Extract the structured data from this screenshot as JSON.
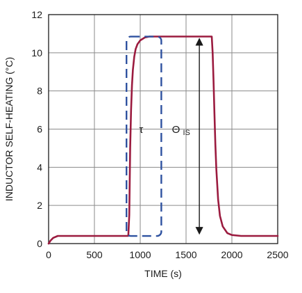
{
  "chart_data": {
    "type": "line",
    "title": "",
    "xlabel": "TIME (s)",
    "ylabel": "INDUCTOR SELF-HEATING (°C)",
    "xlim": [
      0,
      2500
    ],
    "ylim": [
      0,
      12
    ],
    "xticks": [
      0,
      500,
      1000,
      1500,
      2000,
      2500
    ],
    "yticks": [
      0,
      2,
      4,
      6,
      8,
      10,
      12
    ],
    "grid": true,
    "colors": {
      "line": "#9b1b3f",
      "box": "#2f52a0",
      "grid": "#8a8a8a",
      "axis": "#1a1a1a"
    },
    "series": [
      {
        "x": [
          0,
          20,
          50,
          100,
          200,
          400,
          600,
          870,
          880,
          890,
          900,
          910,
          920,
          935,
          950,
          970,
          1000,
          1050,
          1100,
          1200,
          1400,
          1600,
          1780,
          1790,
          1800,
          1810,
          1820,
          1830,
          1850,
          1870,
          1900,
          1950,
          2000,
          2100,
          2300,
          2500
        ],
        "values": [
          0,
          0.15,
          0.3,
          0.4,
          0.4,
          0.4,
          0.4,
          0.4,
          1.5,
          5.0,
          7.0,
          8.3,
          9.1,
          9.8,
          10.2,
          10.45,
          10.65,
          10.8,
          10.85,
          10.85,
          10.85,
          10.85,
          10.85,
          10.0,
          8.5,
          6.8,
          5.2,
          3.9,
          2.3,
          1.45,
          0.9,
          0.55,
          0.45,
          0.4,
          0.4,
          0.4
        ]
      }
    ],
    "annotations": {
      "tau": {
        "label": "τ",
        "box": {
          "x0": 850,
          "x1": 1230,
          "y0": 0.4,
          "y1": 10.85
        },
        "label_at": {
          "x": 1010,
          "y": 5.8
        }
      },
      "theta": {
        "label_main": "Θ",
        "label_sub": "IS",
        "arrow": {
          "x": 1645,
          "y0": 0.45,
          "y1": 10.8
        },
        "label_at": {
          "x": 1445,
          "y": 5.8
        }
      }
    }
  }
}
